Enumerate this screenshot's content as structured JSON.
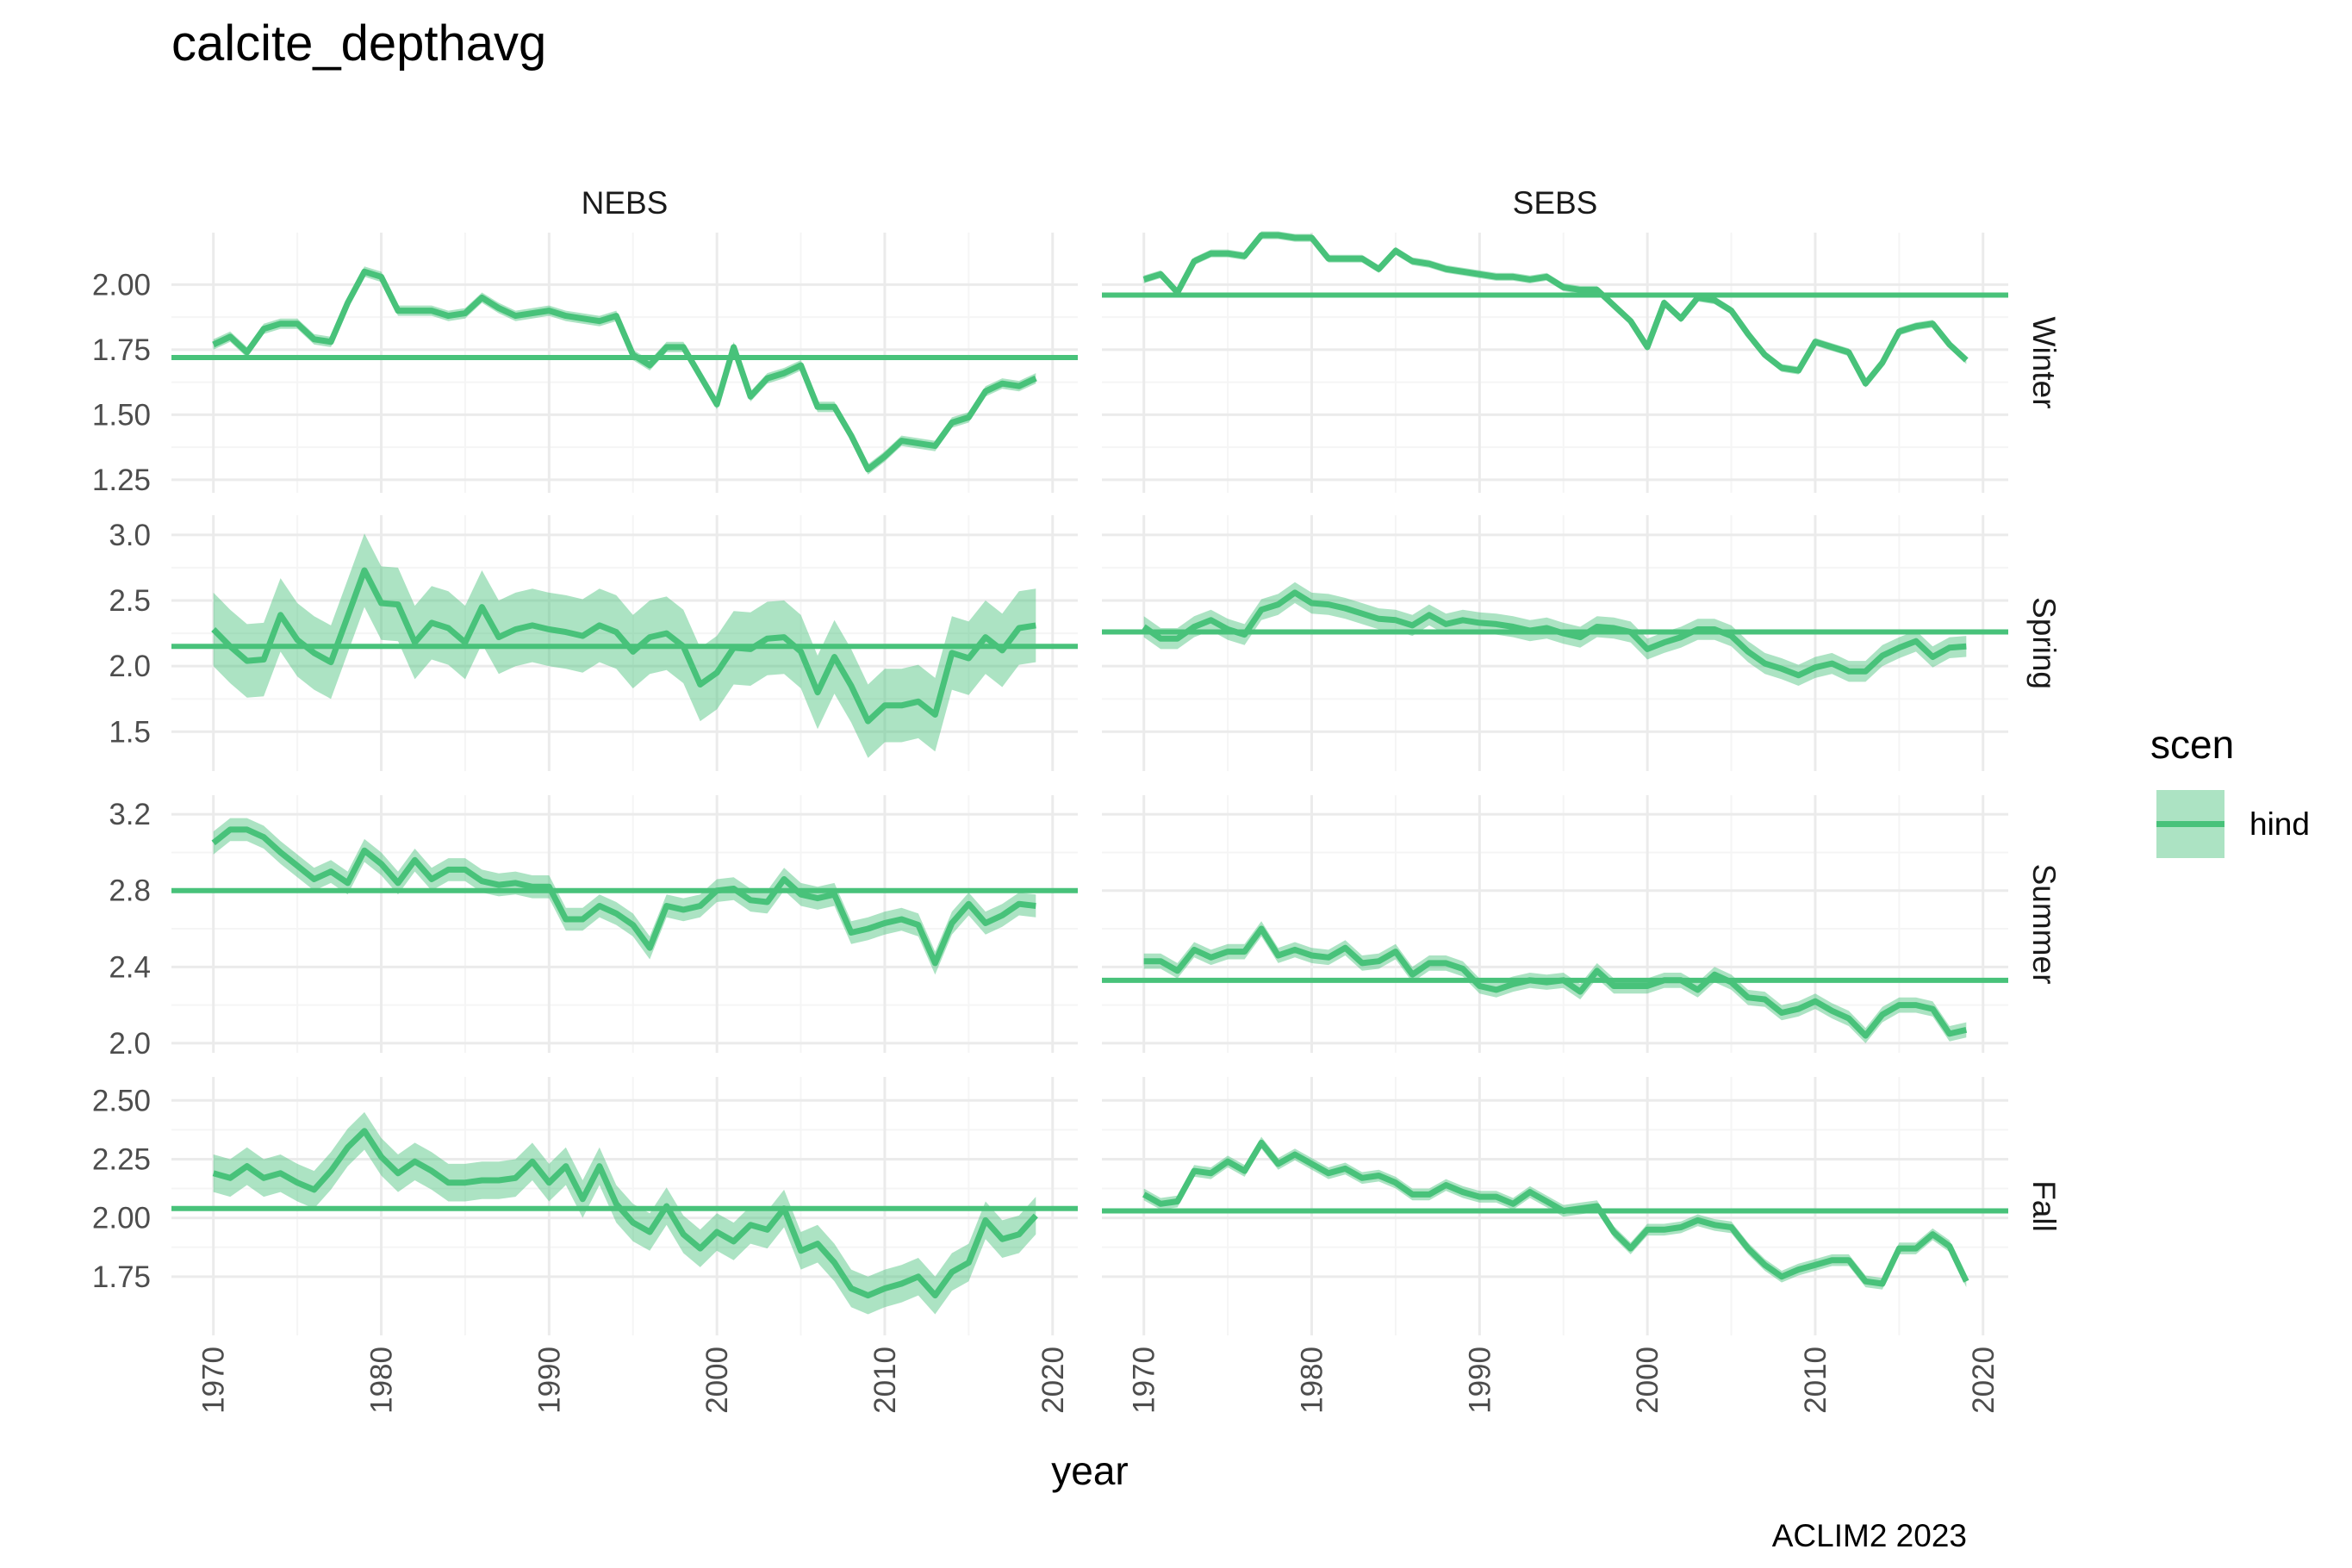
{
  "chart_data": {
    "type": "line",
    "title": "calcite_depthavg",
    "xlabel": "year",
    "ylabel": "",
    "caption": "ACLIM2 2023",
    "legend": {
      "title": "scen",
      "entries": [
        "hind"
      ],
      "placement": "right"
    },
    "colors": {
      "line": "#48c27a",
      "band": "#48c27a",
      "grid_major": "#ebebeb",
      "grid_minor": "#f5f5f5"
    },
    "grid": true,
    "columns": [
      "NEBS",
      "SEBS"
    ],
    "rows": [
      "Winter",
      "Spring",
      "Summer",
      "Fall"
    ],
    "xlim": [
      1967.5,
      2021.5
    ],
    "x_ticks": [
      1970,
      1980,
      1990,
      2000,
      2010,
      2020
    ],
    "x_tick_labels": [
      "1970",
      "1980",
      "1990",
      "2000",
      "2010",
      "2020"
    ],
    "years": [
      1970,
      1971,
      1972,
      1973,
      1974,
      1975,
      1976,
      1977,
      1978,
      1979,
      1980,
      1981,
      1982,
      1983,
      1984,
      1985,
      1986,
      1987,
      1988,
      1989,
      1990,
      1991,
      1992,
      1993,
      1994,
      1995,
      1996,
      1997,
      1998,
      1999,
      2000,
      2001,
      2002,
      2003,
      2004,
      2005,
      2006,
      2007,
      2008,
      2009,
      2010,
      2011,
      2012,
      2013,
      2014,
      2015,
      2016,
      2017,
      2018,
      2019
    ],
    "row_axes": [
      {
        "ylim": [
          1.2,
          2.2
        ],
        "ticks": [
          1.25,
          1.5,
          1.75,
          2.0
        ],
        "tick_labels": [
          "1.25",
          "1.50",
          "1.75",
          "2.00"
        ]
      },
      {
        "ylim": [
          1.2,
          3.15
        ],
        "ticks": [
          1.5,
          2.0,
          2.5,
          3.0
        ],
        "tick_labels": [
          "1.5",
          "2.0",
          "2.5",
          "3.0"
        ]
      },
      {
        "ylim": [
          1.95,
          3.3
        ],
        "ticks": [
          2.0,
          2.4,
          2.8,
          3.2
        ],
        "tick_labels": [
          "2.0",
          "2.4",
          "2.8",
          "3.2"
        ]
      },
      {
        "ylim": [
          1.5,
          2.6
        ],
        "ticks": [
          1.75,
          2.0,
          2.25,
          2.5
        ],
        "tick_labels": [
          "1.75",
          "2.00",
          "2.25",
          "2.50"
        ]
      }
    ],
    "panels": [
      {
        "column": "NEBS",
        "row": "Winter",
        "mean": 1.72,
        "band_half_width": 0.02,
        "values": [
          1.77,
          1.8,
          1.74,
          1.83,
          1.85,
          1.85,
          1.79,
          1.78,
          1.93,
          2.05,
          2.03,
          1.9,
          1.9,
          1.9,
          1.88,
          1.89,
          1.95,
          1.91,
          1.88,
          1.89,
          1.9,
          1.88,
          1.87,
          1.86,
          1.88,
          1.73,
          1.69,
          1.76,
          1.76,
          1.65,
          1.54,
          1.76,
          1.57,
          1.64,
          1.66,
          1.69,
          1.53,
          1.53,
          1.42,
          1.29,
          1.34,
          1.4,
          1.39,
          1.38,
          1.47,
          1.49,
          1.59,
          1.62,
          1.61,
          1.64
        ]
      },
      {
        "column": "SEBS",
        "row": "Winter",
        "mean": 1.96,
        "band_half_width": 0.015,
        "values": [
          2.02,
          2.04,
          1.97,
          2.09,
          2.12,
          2.12,
          2.11,
          2.19,
          2.19,
          2.18,
          2.18,
          2.1,
          2.1,
          2.1,
          2.06,
          2.13,
          2.09,
          2.08,
          2.06,
          2.05,
          2.04,
          2.03,
          2.03,
          2.02,
          2.03,
          1.99,
          1.98,
          1.98,
          1.92,
          1.86,
          1.76,
          1.93,
          1.87,
          1.95,
          1.94,
          1.9,
          1.81,
          1.73,
          1.68,
          1.67,
          1.78,
          1.76,
          1.74,
          1.62,
          1.7,
          1.82,
          1.84,
          1.85,
          1.77,
          1.71
        ]
      },
      {
        "column": "NEBS",
        "row": "Spring",
        "mean": 2.15,
        "band_half_width": 0.28,
        "values": [
          2.28,
          2.15,
          2.04,
          2.05,
          2.39,
          2.2,
          2.1,
          2.03,
          2.38,
          2.73,
          2.48,
          2.47,
          2.18,
          2.33,
          2.29,
          2.18,
          2.45,
          2.22,
          2.28,
          2.31,
          2.28,
          2.26,
          2.23,
          2.31,
          2.26,
          2.11,
          2.22,
          2.25,
          2.15,
          1.86,
          1.95,
          2.14,
          2.13,
          2.21,
          2.22,
          2.11,
          1.8,
          2.07,
          1.85,
          1.58,
          1.7,
          1.7,
          1.73,
          1.63,
          2.1,
          2.06,
          2.22,
          2.12,
          2.29,
          2.31
        ]
      },
      {
        "column": "SEBS",
        "row": "Spring",
        "mean": 2.26,
        "band_half_width": 0.08,
        "values": [
          2.3,
          2.21,
          2.21,
          2.3,
          2.35,
          2.28,
          2.24,
          2.43,
          2.47,
          2.56,
          2.48,
          2.47,
          2.44,
          2.4,
          2.36,
          2.35,
          2.31,
          2.39,
          2.32,
          2.35,
          2.33,
          2.32,
          2.3,
          2.27,
          2.29,
          2.25,
          2.22,
          2.3,
          2.29,
          2.26,
          2.13,
          2.18,
          2.22,
          2.28,
          2.28,
          2.23,
          2.11,
          2.02,
          1.98,
          1.93,
          1.99,
          2.02,
          1.96,
          1.96,
          2.08,
          2.14,
          2.19,
          2.07,
          2.14,
          2.15
        ]
      },
      {
        "column": "NEBS",
        "row": "Summer",
        "mean": 2.8,
        "band_half_width": 0.06,
        "values": [
          3.05,
          3.12,
          3.12,
          3.08,
          3.0,
          2.93,
          2.86,
          2.9,
          2.84,
          3.01,
          2.94,
          2.84,
          2.96,
          2.86,
          2.91,
          2.91,
          2.85,
          2.83,
          2.84,
          2.82,
          2.82,
          2.65,
          2.65,
          2.72,
          2.68,
          2.62,
          2.5,
          2.72,
          2.7,
          2.72,
          2.8,
          2.81,
          2.75,
          2.74,
          2.86,
          2.78,
          2.76,
          2.78,
          2.58,
          2.6,
          2.63,
          2.65,
          2.62,
          2.42,
          2.63,
          2.73,
          2.63,
          2.67,
          2.73,
          2.72
        ]
      },
      {
        "column": "SEBS",
        "row": "Summer",
        "mean": 2.33,
        "band_half_width": 0.04,
        "values": [
          2.43,
          2.43,
          2.38,
          2.49,
          2.45,
          2.48,
          2.48,
          2.6,
          2.46,
          2.49,
          2.46,
          2.45,
          2.5,
          2.42,
          2.43,
          2.48,
          2.36,
          2.42,
          2.42,
          2.39,
          2.3,
          2.28,
          2.31,
          2.33,
          2.32,
          2.33,
          2.27,
          2.38,
          2.3,
          2.3,
          2.3,
          2.33,
          2.33,
          2.28,
          2.36,
          2.32,
          2.24,
          2.23,
          2.16,
          2.18,
          2.22,
          2.17,
          2.13,
          2.04,
          2.15,
          2.2,
          2.2,
          2.18,
          2.05,
          2.07
        ]
      },
      {
        "column": "NEBS",
        "row": "Fall",
        "mean": 2.04,
        "band_half_width": 0.08,
        "values": [
          2.19,
          2.17,
          2.22,
          2.17,
          2.19,
          2.15,
          2.12,
          2.2,
          2.3,
          2.37,
          2.26,
          2.19,
          2.24,
          2.2,
          2.15,
          2.15,
          2.16,
          2.16,
          2.17,
          2.24,
          2.15,
          2.22,
          2.08,
          2.22,
          2.06,
          1.98,
          1.94,
          2.05,
          1.93,
          1.87,
          1.94,
          1.9,
          1.97,
          1.95,
          2.04,
          1.86,
          1.89,
          1.81,
          1.7,
          1.67,
          1.7,
          1.72,
          1.75,
          1.67,
          1.77,
          1.81,
          1.99,
          1.91,
          1.93,
          2.01
        ]
      },
      {
        "column": "SEBS",
        "row": "Fall",
        "mean": 2.03,
        "band_half_width": 0.025,
        "values": [
          2.1,
          2.06,
          2.07,
          2.2,
          2.19,
          2.24,
          2.2,
          2.32,
          2.23,
          2.27,
          2.23,
          2.19,
          2.21,
          2.17,
          2.18,
          2.15,
          2.1,
          2.1,
          2.14,
          2.11,
          2.09,
          2.09,
          2.06,
          2.11,
          2.07,
          2.03,
          2.04,
          2.05,
          1.94,
          1.87,
          1.95,
          1.95,
          1.96,
          1.99,
          1.97,
          1.96,
          1.87,
          1.8,
          1.75,
          1.78,
          1.8,
          1.82,
          1.82,
          1.73,
          1.72,
          1.87,
          1.87,
          1.93,
          1.88,
          1.73
        ]
      }
    ]
  }
}
